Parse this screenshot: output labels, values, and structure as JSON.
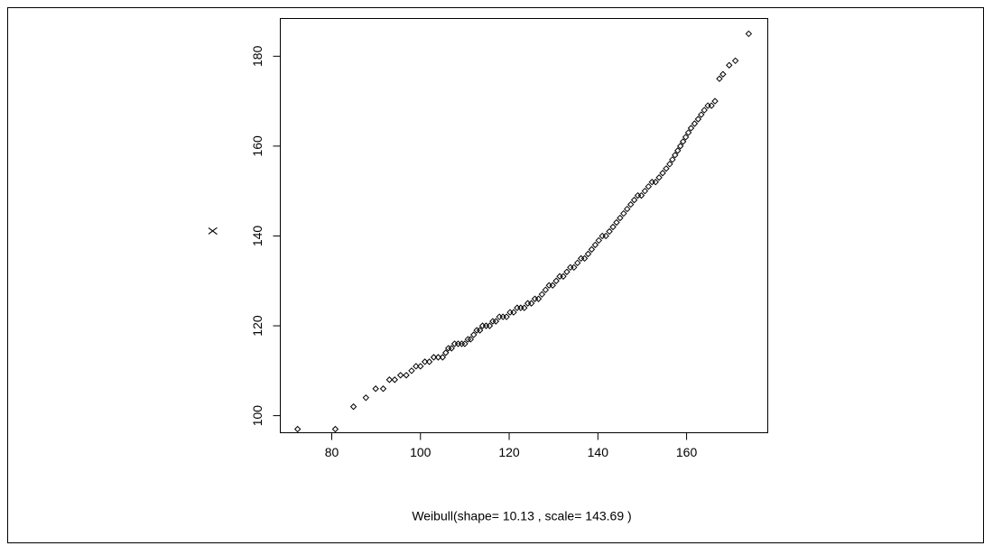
{
  "chart_data": {
    "type": "scatter",
    "xlabel": "Weibull(shape= 10.13 , scale= 143.69 )",
    "ylabel": "X",
    "marker": "diamond",
    "color": "#000000",
    "xlim": [
      68.4,
      178.3
    ],
    "ylim": [
      96.2,
      188.4
    ],
    "xticks": [
      80,
      100,
      120,
      140,
      160
    ],
    "yticks": [
      100,
      120,
      140,
      160,
      180
    ],
    "x": [
      72.3,
      80.8,
      84.9,
      87.7,
      89.9,
      91.6,
      93,
      94.2,
      95.5,
      96.8,
      98,
      99,
      100,
      101,
      102,
      103,
      104,
      105,
      105.7,
      106.3,
      107,
      107.7,
      108.5,
      109.3,
      110,
      110.7,
      111.3,
      112,
      112.7,
      113.4,
      114,
      114.8,
      115.6,
      116.3,
      117,
      117.8,
      118.6,
      119.4,
      120.2,
      121,
      121.8,
      122.6,
      123.4,
      124.2,
      125,
      125.8,
      126.6,
      127.4,
      128.2,
      129,
      129.8,
      130.6,
      131.4,
      132.2,
      133,
      133.8,
      134.6,
      135.4,
      136.2,
      137,
      137.8,
      138.6,
      139.4,
      140.2,
      141,
      141.8,
      142.6,
      143.4,
      144.2,
      145,
      145.8,
      146.6,
      147.4,
      148.2,
      149,
      149.8,
      150.6,
      151.4,
      152.2,
      153,
      153.8,
      154.6,
      155.4,
      156.2,
      156.8,
      157.4,
      158,
      158.6,
      159.2,
      159.8,
      160.4,
      161,
      161.8,
      162.6,
      163.3,
      164,
      164.8,
      165.6,
      166.4,
      167.4,
      168.2,
      169.6,
      171,
      174
    ],
    "values": [
      97,
      97,
      102,
      104,
      106,
      106,
      108,
      108,
      109,
      109,
      110,
      111,
      111,
      112,
      112,
      113,
      113,
      113,
      114,
      115,
      115,
      116,
      116,
      116,
      116,
      117,
      117,
      118,
      119,
      119,
      120,
      120,
      120,
      121,
      121,
      122,
      122,
      122,
      123,
      123,
      124,
      124,
      124,
      125,
      125,
      126,
      126,
      127,
      128,
      129,
      129,
      130,
      131,
      131,
      132,
      133,
      133,
      134,
      135,
      135,
      136,
      137,
      138,
      139,
      140,
      140,
      141,
      142,
      143,
      144,
      145,
      146,
      147,
      148,
      149,
      149,
      150,
      151,
      152,
      152,
      153,
      154,
      155,
      156,
      157,
      158,
      159,
      160,
      161,
      162,
      163,
      164,
      165,
      166,
      167,
      168,
      169,
      169,
      170,
      175,
      176,
      178,
      179,
      185
    ]
  }
}
